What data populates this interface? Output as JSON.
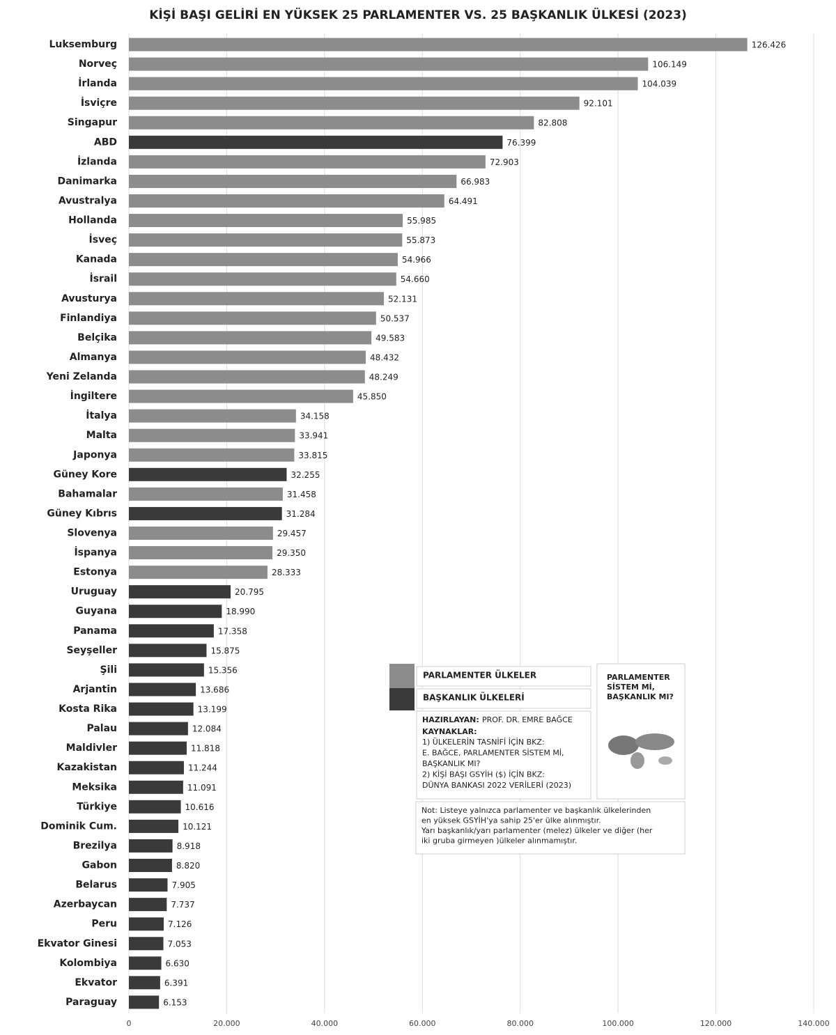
{
  "chart_data": {
    "type": "bar",
    "orientation": "horizontal",
    "title": "KİŞİ BAŞI GELİRİ EN YÜKSEK 25 PARLAMENTER VS. 25 BAŞKANLIK ÜLKESİ (2023)",
    "categories": [
      "Luksemburg",
      "Norveç",
      "İrlanda",
      "İsviçre",
      "Singapur",
      "ABD",
      "İzlanda",
      "Danimarka",
      "Avustralya",
      "Hollanda",
      "İsveç",
      "Kanada",
      "İsrail",
      "Avusturya",
      "Finlandiya",
      "Belçika",
      "Almanya",
      "Yeni Zelanda",
      "İngiltere",
      "İtalya",
      "Malta",
      "Japonya",
      "Güney Kore",
      "Bahamalar",
      "Güney Kıbrıs",
      "Slovenya",
      "İspanya",
      "Estonya",
      "Uruguay",
      "Guyana",
      "Panama",
      "Seyşeller",
      "Şili",
      "Arjantin",
      "Kosta Rika",
      "Palau",
      "Maldivler",
      "Kazakistan",
      "Meksika",
      "Türkiye",
      "Dominik Cum.",
      "Brezilya",
      "Gabon",
      "Belarus",
      "Azerbaycan",
      "Peru",
      "Ekvator Ginesi",
      "Kolombiya",
      "Ekvator",
      "Paraguay"
    ],
    "series": [
      {
        "name": "PARLAMENTER ÜLKELER",
        "color": "#8c8c8c",
        "values": [
          126426,
          106149,
          104039,
          92101,
          82808,
          null,
          72903,
          66983,
          64491,
          55985,
          55873,
          54966,
          54660,
          52131,
          50537,
          49583,
          48432,
          48249,
          45850,
          34158,
          33941,
          33815,
          null,
          31458,
          null,
          29457,
          29350,
          28333,
          null,
          null,
          null,
          null,
          null,
          null,
          null,
          null,
          null,
          null,
          null,
          null,
          null,
          null,
          null,
          null,
          null,
          null,
          null,
          null,
          null,
          null
        ],
        "value_labels": [
          "126.426",
          "106.149",
          "104.039",
          "92.101",
          "82.808",
          null,
          "72.903",
          "66.983",
          "64.491",
          "55.985",
          "55.873",
          "54.966",
          "54.660",
          "52.131",
          "50.537",
          "49.583",
          "48.432",
          "48.249",
          "45.850",
          "34.158",
          "33.941",
          "33.815",
          null,
          "31.458",
          null,
          "29.457",
          "29.350",
          "28.333",
          null,
          null,
          null,
          null,
          null,
          null,
          null,
          null,
          null,
          null,
          null,
          null,
          null,
          null,
          null,
          null,
          null,
          null,
          null,
          null,
          null,
          null
        ]
      },
      {
        "name": "BAŞKANLIK ÜLKELERİ",
        "color": "#3a3a3a",
        "values": [
          null,
          null,
          null,
          null,
          null,
          76399,
          null,
          null,
          null,
          null,
          null,
          null,
          null,
          null,
          null,
          null,
          null,
          null,
          null,
          null,
          null,
          null,
          32255,
          null,
          31284,
          null,
          null,
          null,
          20795,
          18990,
          17358,
          15875,
          15356,
          13686,
          13199,
          12084,
          11818,
          11244,
          11091,
          10616,
          10121,
          8918,
          8820,
          7905,
          7737,
          7126,
          7053,
          6630,
          6391,
          6153
        ],
        "value_labels": [
          null,
          null,
          null,
          null,
          null,
          "76.399",
          null,
          null,
          null,
          null,
          null,
          null,
          null,
          null,
          null,
          null,
          null,
          null,
          null,
          null,
          null,
          null,
          "32.255",
          null,
          "31.284",
          null,
          null,
          null,
          "20.795",
          "18.990",
          "17.358",
          "15.875",
          "15.356",
          "13.686",
          "13.199",
          "12.084",
          "11.818",
          "11.244",
          "11.091",
          "10.616",
          "10.121",
          "8.918",
          "8.820",
          "7.905",
          "7.737",
          "7.126",
          "7.053",
          "6.630",
          "6.391",
          "6.153"
        ]
      }
    ],
    "xlim": [
      0,
      140000
    ],
    "xticks": [
      0,
      {
        "value": 20000,
        "label": "20.000"
      },
      {
        "value": 40000,
        "label": "40.000"
      },
      {
        "value": 60000,
        "label": "60.000"
      },
      {
        "value": 80000,
        "label": "80.000"
      },
      {
        "value": 100000,
        "label": "100.000"
      },
      {
        "value": 120000,
        "label": "120.000"
      },
      {
        "value": 140000,
        "label": "140.000"
      }
    ],
    "grid": true,
    "notes": {
      "prepared_label": "HAZIRLAYAN:",
      "prepared_by": "PROF. DR. EMRE BAĞCE",
      "sources_label": "KAYNAKLAR:",
      "sources": [
        "1) ÜLKELERİN TASNİFİ İÇİN BKZ:",
        "E. BAĞCE, PARLAMENTER SİSTEM Mİ,",
        "BAŞKANLIK MI?",
        "2) KİŞİ BAŞI GSYİH ($) İÇİN BKZ:",
        "DÜNYA BANKASI 2022 VERİLERİ (2023)"
      ],
      "note": [
        "Not: Listeye yalnızca parlamenter ve başkanlık ülkelerinden",
        "en yüksek GSYİH'ya  sahip 25'er ülke alınmıştır.",
        "Yarı başkanlık/yarı  parlamenter (melez) ülkeler ve diğer (her",
        "iki gruba girmeyen )ülkeler alınmamıştır."
      ],
      "book_title": [
        "PARLAMENTER",
        "SİSTEM Mİ,",
        "BAŞKANLIK MI?"
      ]
    }
  }
}
